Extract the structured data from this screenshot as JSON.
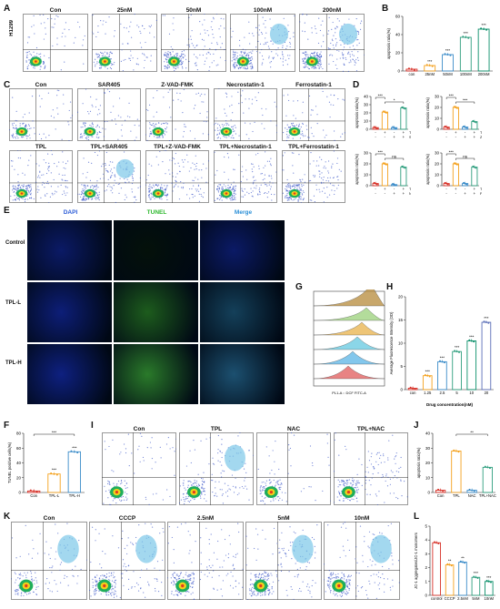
{
  "panels": {
    "A": "A",
    "B": "B",
    "C": "C",
    "D": "D",
    "E": "E",
    "F": "F",
    "G": "G",
    "H": "H",
    "I": "I",
    "J": "J",
    "K": "K",
    "L": "L"
  },
  "A": {
    "side": "H1299",
    "titles": [
      "Con",
      "25nM",
      "50nM",
      "100nM",
      "200nM"
    ]
  },
  "C": {
    "row1": [
      "Con",
      "SAR405",
      "Z-VAD-FMK",
      "Necrostatin-1",
      "Ferrostatin-1"
    ],
    "row2": [
      "TPL",
      "TPL+SAR405",
      "TPL+Z-VAD-FMK",
      "TPL+Necrostatin-1",
      "TPL+Ferrostatin-1"
    ]
  },
  "E": {
    "cols": [
      "DAPI",
      "TUNEL",
      "Merge"
    ],
    "rows": [
      "Control",
      "TPL-L",
      "TPL-H"
    ]
  },
  "I": {
    "titles": [
      "Con",
      "TPL",
      "NAC",
      "TPL+NAC"
    ]
  },
  "K": {
    "titles": [
      "Con",
      "CCCP",
      "2.5nM",
      "5nM",
      "10nM"
    ]
  },
  "G": {
    "xlabel": "PL1-A :: DCF FITC-A"
  },
  "colors": {
    "red": "#d73027",
    "orange": "#f4a11d",
    "blue": "#3b8cc9",
    "teal": "#2e9e7e",
    "green": "#0b8f6a",
    "gray": "#999999"
  },
  "chart_data": [
    {
      "id": "B",
      "type": "bar",
      "ylabel": "apoptosis ratio(%)",
      "categories": [
        "con",
        "25nM",
        "50nM",
        "100nM",
        "200nM"
      ],
      "values": [
        2,
        6,
        18,
        37,
        46
      ],
      "ylim": [
        0,
        60
      ],
      "yticks": [
        0,
        20,
        40,
        60
      ],
      "sig": [
        "",
        "***",
        "***",
        "***",
        "***"
      ]
    },
    {
      "id": "D1",
      "type": "bar",
      "ylabel": "apoptosis ratio(%)",
      "categories": [
        "1",
        "2",
        "3",
        "4"
      ],
      "values": [
        2,
        21,
        2,
        26
      ],
      "ylim": [
        0,
        40
      ],
      "yticks": [
        0,
        10,
        20,
        30,
        40
      ],
      "sig_pairs": [
        {
          "a": 0,
          "b": 1,
          "s": "***"
        },
        {
          "a": 1,
          "b": 3,
          "s": "*"
        }
      ],
      "signs": {
        "TPL": [
          "-",
          "+",
          "-",
          "+"
        ],
        "SAR-405": [
          "-",
          "-",
          "+",
          "+"
        ]
      }
    },
    {
      "id": "D2",
      "type": "bar",
      "ylabel": "apoptosis ratio(%)",
      "categories": [
        "1",
        "2",
        "3",
        "4"
      ],
      "values": [
        2,
        20,
        2,
        7
      ],
      "ylim": [
        0,
        30
      ],
      "yticks": [
        0,
        10,
        20,
        30
      ],
      "sig_pairs": [
        {
          "a": 0,
          "b": 1,
          "s": "***"
        },
        {
          "a": 1,
          "b": 3,
          "s": "***"
        }
      ],
      "signs": {
        "TPL": [
          "-",
          "+",
          "-",
          "+"
        ],
        "Z-VAD-FMK": [
          "-",
          "-",
          "+",
          "+"
        ]
      }
    },
    {
      "id": "D3",
      "type": "bar",
      "ylabel": "apoptosis ratio(%)",
      "categories": [
        "1",
        "2",
        "3",
        "4"
      ],
      "values": [
        2,
        20,
        1,
        17
      ],
      "ylim": [
        0,
        30
      ],
      "yticks": [
        0,
        10,
        20,
        30
      ],
      "sig_pairs": [
        {
          "a": 0,
          "b": 1,
          "s": "***"
        },
        {
          "a": 1,
          "b": 3,
          "s": "ns"
        }
      ],
      "signs": {
        "TPL": [
          "-",
          "+",
          "-",
          "+"
        ],
        "Necrostatin-1": [
          "-",
          "-",
          "+",
          "+"
        ]
      }
    },
    {
      "id": "D4",
      "type": "bar",
      "ylabel": "apoptosis ratio(%)",
      "categories": [
        "1",
        "2",
        "3",
        "4"
      ],
      "values": [
        2,
        20,
        2,
        17
      ],
      "ylim": [
        0,
        30
      ],
      "yticks": [
        0,
        10,
        20,
        30
      ],
      "sig_pairs": [
        {
          "a": 0,
          "b": 1,
          "s": "***"
        },
        {
          "a": 1,
          "b": 3,
          "s": "ns"
        }
      ],
      "signs": {
        "TPL": [
          "-",
          "+",
          "-",
          "+"
        ],
        "Ferrostatin-1": [
          "-",
          "-",
          "+",
          "+"
        ]
      }
    },
    {
      "id": "F",
      "type": "bar",
      "ylabel": "TUNEL positive cells(%)",
      "categories": [
        "Con",
        "TPL-L",
        "TPL-H"
      ],
      "values": [
        2,
        25,
        55
      ],
      "ylim": [
        0,
        80
      ],
      "yticks": [
        0,
        20,
        40,
        60,
        80
      ],
      "sig": [
        "",
        "***",
        "***"
      ],
      "sig_pairs": [
        {
          "a": 0,
          "b": 2,
          "s": "***"
        }
      ]
    },
    {
      "id": "H",
      "type": "bar",
      "ylabel": "Average Fluorescence Intensity (OD)",
      "xlabel": "Drug concentration(nM)",
      "categories": [
        "con",
        "1.25",
        "2.5",
        "5",
        "10",
        "20"
      ],
      "values": [
        0.3,
        3,
        6,
        8.2,
        10.5,
        14.5
      ],
      "ylim": [
        0,
        20
      ],
      "yticks": [
        0,
        5,
        10,
        15,
        20
      ],
      "sig": [
        "",
        "***",
        "***",
        "***",
        "***",
        "***"
      ]
    },
    {
      "id": "J",
      "type": "bar",
      "ylabel": "apoptosis ratio(%)",
      "categories": [
        "Con",
        "TPL",
        "NAC",
        "TPL+NAC"
      ],
      "values": [
        1.5,
        28,
        1.5,
        17
      ],
      "ylim": [
        0,
        40
      ],
      "yticks": [
        0,
        10,
        20,
        30,
        40
      ],
      "sig_pairs": [
        {
          "a": 1,
          "b": 3,
          "s": "**"
        }
      ]
    },
    {
      "id": "L",
      "type": "bar",
      "ylabel": "JC-1 aggregates/JC-1 monomers",
      "categories": [
        "control",
        "CCCP",
        "2.5nM",
        "5nM",
        "10nM"
      ],
      "values": [
        3.8,
        2.2,
        2.4,
        1.3,
        1.0
      ],
      "ylim": [
        0,
        5
      ],
      "yticks": [
        0,
        1,
        2,
        3,
        4,
        5
      ],
      "sig": [
        "",
        "**",
        "**",
        "***",
        "***"
      ]
    }
  ]
}
